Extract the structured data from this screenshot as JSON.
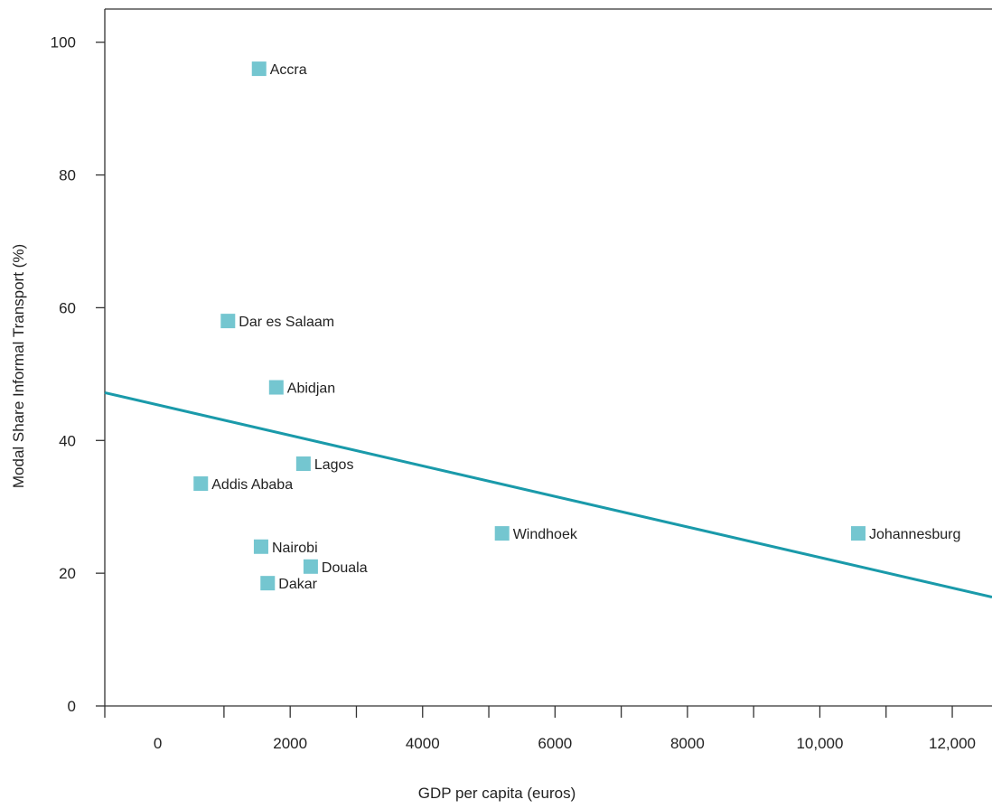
{
  "chart_data": {
    "type": "scatter",
    "xlabel": "GDP per capita (euros)",
    "ylabel": "Modal Share Informal Transport (%)",
    "xlim": [
      -800,
      12600
    ],
    "ylim": [
      0,
      105
    ],
    "x_ticks": [
      0,
      2000,
      4000,
      6000,
      8000,
      10000,
      12000
    ],
    "x_tick_labels": [
      "0",
      "2000",
      "4000",
      "6000",
      "8000",
      "10,000",
      "12,000"
    ],
    "y_ticks": [
      0,
      20,
      40,
      60,
      80,
      100
    ],
    "y_tick_labels": [
      "0",
      "20",
      "40",
      "60",
      "80",
      "100"
    ],
    "grid": false,
    "marker_color": "#74c6d0",
    "trendline_color": "#1a9aaa",
    "points": [
      {
        "label": "Accra",
        "x": 1530,
        "y": 96
      },
      {
        "label": "Dar es Salaam",
        "x": 1060,
        "y": 58
      },
      {
        "label": "Abidjan",
        "x": 1790,
        "y": 48
      },
      {
        "label": "Lagos",
        "x": 2200,
        "y": 36.5
      },
      {
        "label": "Addis Ababa",
        "x": 650,
        "y": 33.5
      },
      {
        "label": "Windhoek",
        "x": 5200,
        "y": 26
      },
      {
        "label": "Johannesburg",
        "x": 10580,
        "y": 26
      },
      {
        "label": "Nairobi",
        "x": 1560,
        "y": 24
      },
      {
        "label": "Douala",
        "x": 2310,
        "y": 21
      },
      {
        "label": "Dakar",
        "x": 1660,
        "y": 18.5
      }
    ],
    "trendline": {
      "x": [
        -800,
        12600
      ],
      "y": [
        47.2,
        16.4
      ]
    }
  }
}
